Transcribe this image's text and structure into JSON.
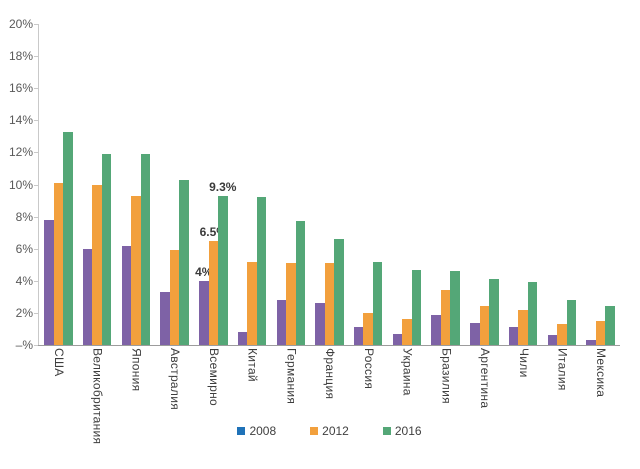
{
  "chart_data": {
    "type": "bar",
    "title": "",
    "xlabel": "",
    "ylabel": "",
    "ylim": [
      0,
      20
    ],
    "grid": false,
    "legend_position": "bottom-center",
    "y_ticks": [
      "20%",
      "18%",
      "16%",
      "14%",
      "12%",
      "10%",
      "8%",
      "6%",
      "4%",
      "2%",
      "–%"
    ],
    "categories": [
      "США",
      "Великобритания",
      "Япония",
      "Австралия",
      "Всемирно",
      "Китай",
      "Германия",
      "Франция",
      "Россия",
      "Украина",
      "Бразилия",
      "Аргентина",
      "Чили",
      "Италия",
      "Мексика"
    ],
    "series": [
      {
        "name": "2008",
        "bar_color": "#7e62a6",
        "legend_color": "#1f72b8",
        "values": [
          7.8,
          6.0,
          6.2,
          3.3,
          4.0,
          0.8,
          2.8,
          2.6,
          1.1,
          0.7,
          1.9,
          1.4,
          1.1,
          0.6,
          0.3
        ]
      },
      {
        "name": "2012",
        "bar_color": "#f2a03d",
        "legend_color": "#f2a03d",
        "values": [
          10.1,
          10.0,
          9.3,
          5.9,
          6.5,
          5.2,
          5.1,
          5.1,
          2.0,
          1.6,
          3.4,
          2.4,
          2.2,
          1.3,
          1.5
        ]
      },
      {
        "name": "2016",
        "bar_color": "#54a777",
        "legend_color": "#54a777",
        "values": [
          13.3,
          11.9,
          11.9,
          10.3,
          9.3,
          9.2,
          7.7,
          6.6,
          5.2,
          4.7,
          4.6,
          4.1,
          3.9,
          2.8,
          2.4
        ]
      }
    ],
    "data_labels": {
      "category": "Всемирно",
      "labels": [
        "4%",
        "6.5%",
        "9.3%"
      ]
    },
    "colors": {
      "y_axis_line": "#c9c9c9",
      "x_axis_line": "#9c9c9c",
      "y_label_text": "#595959",
      "x_label_text": "#3d3d3d",
      "legend_text": "#404040",
      "data_label_text": "#3a3a3a",
      "background": "#ffffff"
    }
  }
}
